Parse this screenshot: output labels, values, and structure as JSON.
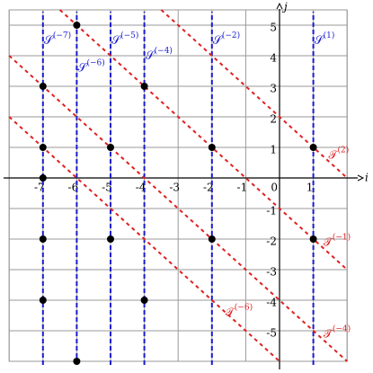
{
  "xlim": [
    -8,
    2
  ],
  "ylim": [
    -6,
    5.5
  ],
  "axis_names": {
    "x": "i",
    "y": "j"
  },
  "origin_label": "0",
  "xticks": [
    -7,
    -6,
    -5,
    -4,
    -3,
    -2,
    -1,
    1
  ],
  "yticks": [
    5,
    4,
    3,
    2,
    1,
    -1,
    -2,
    -3,
    -4,
    -5
  ],
  "vertical_lines": [
    {
      "x": -7,
      "base": "𝒮",
      "sup": "(−7)"
    },
    {
      "x": -6,
      "base": "𝒮",
      "sup": "(−6)"
    },
    {
      "x": -5,
      "base": "𝒮",
      "sup": "(−5)"
    },
    {
      "x": -4,
      "base": "𝒮",
      "sup": "(−4)"
    },
    {
      "x": -2,
      "base": "𝒮",
      "sup": "(−2)"
    },
    {
      "x": 1,
      "base": "𝒮",
      "sup": "(1)"
    }
  ],
  "diagonal_lines": [
    {
      "sum": 2,
      "base": "𝒯",
      "sup": "(2)"
    },
    {
      "sum": -1,
      "base": "𝒯",
      "sup": "(−1)"
    },
    {
      "sum": -6,
      "base": "𝒯",
      "sup": "(−6)"
    },
    {
      "sum": -4,
      "base": "𝒯",
      "sup": "(−4)"
    }
  ],
  "points": [
    [
      -6,
      5
    ],
    [
      -7,
      3
    ],
    [
      -4,
      3
    ],
    [
      -7,
      1
    ],
    [
      -5,
      1
    ],
    [
      -2,
      1
    ],
    [
      1,
      1
    ],
    [
      -7,
      0
    ],
    [
      -7,
      -2
    ],
    [
      -5,
      -2
    ],
    [
      -2,
      -2
    ],
    [
      1,
      -2
    ],
    [
      -7,
      -4
    ],
    [
      -4,
      -4
    ],
    [
      -6,
      -6
    ]
  ]
}
